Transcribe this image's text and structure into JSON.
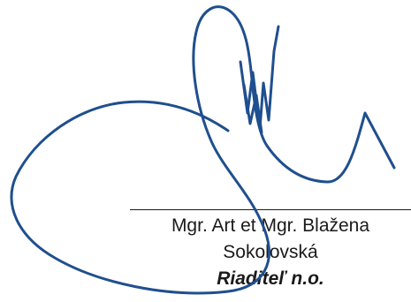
{
  "signature_block": {
    "name_line_1": "Mgr. Art et Mgr. Blažena",
    "name_line_2": "Sokolovská",
    "role": "Riaditeľ n.o."
  },
  "signature": {
    "ink_color": "#1f4f8e"
  }
}
